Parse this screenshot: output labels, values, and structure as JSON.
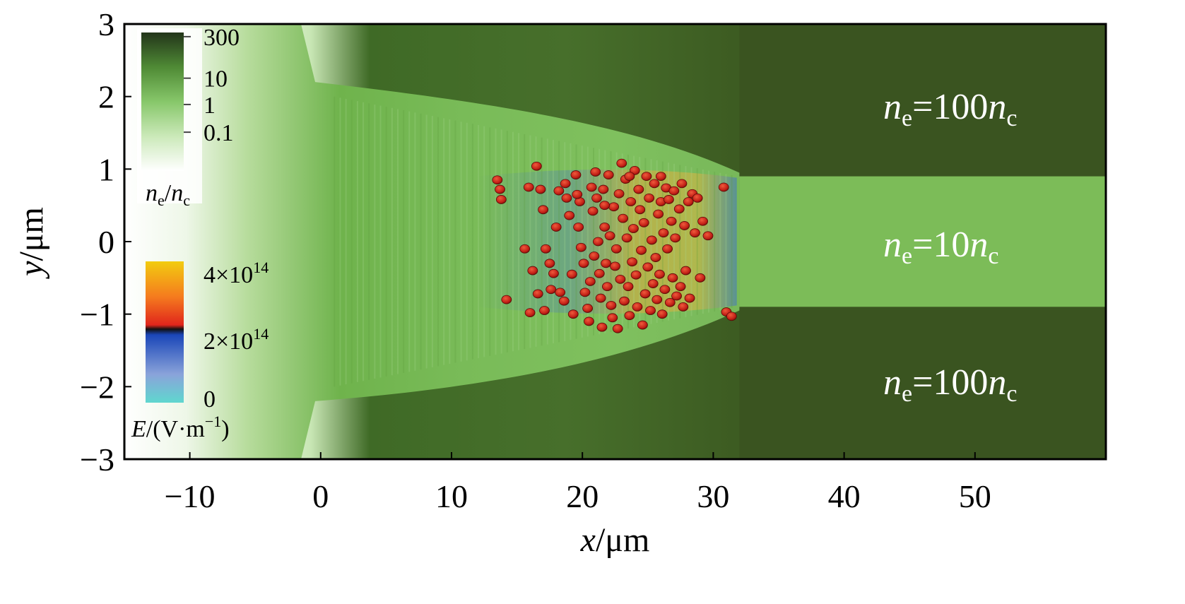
{
  "chart_data": {
    "type": "heatmap",
    "title": "",
    "xlabel": "x/μm",
    "ylabel": "y/μm",
    "xlim": [
      -15,
      60
    ],
    "ylim": [
      -3,
      3
    ],
    "x_ticks": [
      {
        "value": -10,
        "label": "−10"
      },
      {
        "value": 0,
        "label": "0"
      },
      {
        "value": 10,
        "label": "10"
      },
      {
        "value": 20,
        "label": "20"
      },
      {
        "value": 30,
        "label": "30"
      },
      {
        "value": 40,
        "label": "40"
      },
      {
        "value": 50,
        "label": "50"
      }
    ],
    "y_ticks": [
      {
        "value": 3,
        "label": "3"
      },
      {
        "value": 2,
        "label": "2"
      },
      {
        "value": 1,
        "label": "1"
      },
      {
        "value": 0,
        "label": "0"
      },
      {
        "value": -1,
        "label": "−1"
      },
      {
        "value": -2,
        "label": "−2"
      },
      {
        "value": -3,
        "label": "−3"
      }
    ],
    "annotations": [
      {
        "base": "n",
        "sub": "e",
        "mid": "=100",
        "base2": "n",
        "sub2": "c",
        "y": 1.85
      },
      {
        "base": "n",
        "sub": "e",
        "mid": "=10",
        "base2": "n",
        "sub2": "c",
        "y": -0.05
      },
      {
        "base": "n",
        "sub": "e",
        "mid": "=100",
        "base2": "n",
        "sub2": "c",
        "y": -1.95
      }
    ],
    "density_colorbar": {
      "label_base": "n",
      "label_sub": "e",
      "label_sep": "/",
      "label_base2": "n",
      "label_sub2": "c",
      "ticks": [
        {
          "label": "300",
          "pos": 0.03
        },
        {
          "label": "10",
          "pos": 0.33
        },
        {
          "label": "1",
          "pos": 0.52
        },
        {
          "label": "0.1",
          "pos": 0.72
        }
      ],
      "colors": [
        "#23351a",
        "#4f8a35",
        "#87c76a",
        "#cbe9b9",
        "#ffffff"
      ]
    },
    "field_colorbar": {
      "label_var": "E",
      "label_rest": "/(V·m",
      "label_exp": "−1",
      "label_close": ")",
      "ticks": [
        {
          "label": "4×10",
          "exp": "14",
          "pos": 0.08
        },
        {
          "label": "2×10",
          "exp": "14",
          "pos": 0.55
        },
        {
          "label": "0",
          "pos": 0.96
        }
      ],
      "colors": [
        "#f2cc10",
        "#f57b1e",
        "#e0261c",
        "#111111",
        "#1a46b8",
        "#8aa3da",
        "#5fd7cf"
      ]
    },
    "regions": [
      {
        "name": "upper wall",
        "x": [
          32,
          60
        ],
        "y": [
          0.9,
          3
        ],
        "density": 100
      },
      {
        "name": "channel",
        "x": [
          32,
          60
        ],
        "y": [
          -0.9,
          0.9
        ],
        "density": 10
      },
      {
        "name": "lower wall",
        "x": [
          32,
          60
        ],
        "y": [
          -3,
          -0.9
        ],
        "density": 100
      }
    ],
    "particles": [
      [
        13.5,
        0.85
      ],
      [
        13.7,
        0.72
      ],
      [
        13.8,
        0.58
      ],
      [
        14.2,
        -0.8
      ],
      [
        15.6,
        -0.1
      ],
      [
        15.9,
        0.75
      ],
      [
        16.0,
        -0.98
      ],
      [
        16.2,
        -0.4
      ],
      [
        16.5,
        1.04
      ],
      [
        16.6,
        -0.72
      ],
      [
        16.8,
        0.72
      ],
      [
        17.0,
        0.44
      ],
      [
        17.1,
        -0.95
      ],
      [
        17.2,
        -0.1
      ],
      [
        17.5,
        -0.3
      ],
      [
        17.6,
        -0.66
      ],
      [
        17.8,
        -0.44
      ],
      [
        18.0,
        0.2
      ],
      [
        18.3,
        -0.7
      ],
      [
        18.6,
        -0.82
      ],
      [
        18.7,
        0.8
      ],
      [
        18.8,
        0.6
      ],
      [
        19.0,
        0.36
      ],
      [
        19.2,
        -0.45
      ],
      [
        19.3,
        -1.0
      ],
      [
        19.5,
        0.92
      ],
      [
        19.7,
        0.2
      ],
      [
        19.8,
        0.55
      ],
      [
        19.9,
        -0.08
      ],
      [
        20.1,
        -0.3
      ],
      [
        20.2,
        -0.7
      ],
      [
        20.4,
        -0.92
      ],
      [
        20.5,
        -1.1
      ],
      [
        20.6,
        -0.55
      ],
      [
        20.7,
        0.75
      ],
      [
        20.8,
        0.42
      ],
      [
        20.9,
        -0.2
      ],
      [
        21.0,
        0.96
      ],
      [
        21.1,
        0.6
      ],
      [
        21.2,
        0.0
      ],
      [
        21.3,
        -0.44
      ],
      [
        21.4,
        -0.78
      ],
      [
        21.5,
        -1.18
      ],
      [
        21.6,
        0.72
      ],
      [
        21.7,
        0.2
      ],
      [
        21.8,
        -0.3
      ],
      [
        21.9,
        -0.62
      ],
      [
        22.0,
        0.92
      ],
      [
        22.1,
        0.08
      ],
      [
        22.2,
        -0.88
      ],
      [
        22.3,
        -1.05
      ],
      [
        22.4,
        0.48
      ],
      [
        22.5,
        -0.34
      ],
      [
        22.6,
        -0.1
      ],
      [
        22.7,
        -1.2
      ],
      [
        22.8,
        0.66
      ],
      [
        22.9,
        -0.52
      ],
      [
        23.0,
        1.08
      ],
      [
        23.1,
        0.32
      ],
      [
        23.2,
        -0.82
      ],
      [
        23.3,
        0.86
      ],
      [
        23.4,
        0.05
      ],
      [
        23.5,
        -0.62
      ],
      [
        23.6,
        -1.02
      ],
      [
        23.7,
        0.55
      ],
      [
        23.8,
        -0.28
      ],
      [
        23.9,
        0.18
      ],
      [
        24.0,
        0.98
      ],
      [
        24.1,
        -0.46
      ],
      [
        24.2,
        -0.9
      ],
      [
        24.3,
        0.72
      ],
      [
        24.4,
        0.44
      ],
      [
        24.5,
        -0.12
      ],
      [
        24.6,
        -1.15
      ],
      [
        24.7,
        0.26
      ],
      [
        24.8,
        -0.72
      ],
      [
        24.9,
        0.9
      ],
      [
        25.0,
        -0.35
      ],
      [
        25.1,
        0.6
      ],
      [
        25.2,
        -0.95
      ],
      [
        25.3,
        0.02
      ],
      [
        25.4,
        -0.58
      ],
      [
        25.5,
        0.8
      ],
      [
        25.6,
        -0.22
      ],
      [
        25.7,
        -0.8
      ],
      [
        25.8,
        0.38
      ],
      [
        25.9,
        -0.45
      ],
      [
        26.0,
        0.55
      ],
      [
        26.1,
        -1.0
      ],
      [
        26.2,
        0.12
      ],
      [
        26.3,
        -0.66
      ],
      [
        26.4,
        0.74
      ],
      [
        26.5,
        -0.1
      ],
      [
        26.6,
        0.58
      ],
      [
        26.7,
        -0.84
      ],
      [
        26.8,
        0.28
      ],
      [
        26.9,
        -0.5
      ],
      [
        27.0,
        0.7
      ],
      [
        27.1,
        0.05
      ],
      [
        27.2,
        -0.75
      ],
      [
        27.4,
        0.45
      ],
      [
        27.5,
        -0.62
      ],
      [
        27.6,
        0.8
      ],
      [
        27.7,
        -0.9
      ],
      [
        27.8,
        0.22
      ],
      [
        27.9,
        -0.4
      ],
      [
        28.1,
        0.55
      ],
      [
        28.2,
        -0.78
      ],
      [
        28.4,
        0.66
      ],
      [
        28.6,
        0.12
      ],
      [
        28.8,
        0.6
      ],
      [
        29.0,
        -0.5
      ],
      [
        29.2,
        0.28
      ],
      [
        29.6,
        0.08
      ],
      [
        30.8,
        0.75
      ],
      [
        31.0,
        -0.97
      ],
      [
        31.4,
        -1.03
      ],
      [
        19.6,
        0.65
      ],
      [
        21.7,
        0.5
      ],
      [
        23.6,
        0.9
      ],
      [
        26.0,
        0.9
      ],
      [
        18.2,
        0.7
      ]
    ]
  }
}
